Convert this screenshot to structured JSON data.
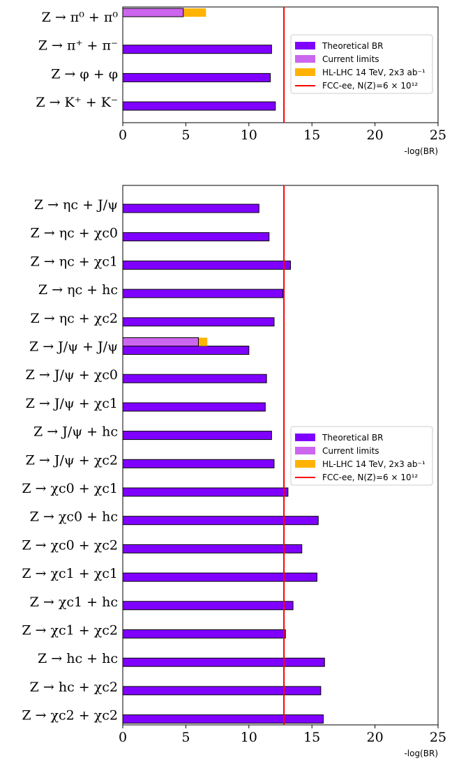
{
  "chart_data": [
    {
      "type": "bar",
      "orientation": "horizontal",
      "xlabel": "-log(BR)",
      "xlim": [
        0,
        25
      ],
      "xticks": [
        "0",
        "5",
        "10",
        "15",
        "20",
        "25"
      ],
      "categories": [
        "Z → π⁰ + π⁰",
        "Z → π⁺ + π⁻",
        "Z → φ + φ",
        "Z → K⁺ + K⁻"
      ],
      "series": [
        {
          "name": "Theoretical BR",
          "color": "#7F00FF",
          "values": [
            null,
            11.8,
            11.7,
            12.1
          ]
        },
        {
          "name": "Current limits",
          "color": "#CC66EE",
          "values": [
            4.8,
            null,
            null,
            null
          ]
        },
        {
          "name": "HL-LHC 14 TeV, 2x3 ab⁻¹",
          "color": "#FFB300",
          "values": [
            6.6,
            null,
            null,
            null
          ]
        }
      ],
      "reference_line": {
        "name": "FCC-ee, N(Z)=6 × 10¹²",
        "color": "#FF0000",
        "x": 12.78
      },
      "legend": {
        "location": "center-right"
      }
    },
    {
      "type": "bar",
      "orientation": "horizontal",
      "xlabel": "-log(BR)",
      "xlim": [
        0,
        25
      ],
      "xticks": [
        "0",
        "5",
        "10",
        "15",
        "20",
        "25"
      ],
      "categories": [
        "Z → ηc + J/ψ",
        "Z → ηc + χc0",
        "Z → ηc + χc1",
        "Z → ηc + hc",
        "Z → ηc + χc2",
        "Z → J/ψ + J/ψ",
        "Z → J/ψ + χc0",
        "Z → J/ψ + χc1",
        "Z → J/ψ + hc",
        "Z → J/ψ + χc2",
        "Z → χc0 + χc1",
        "Z → χc0 + hc",
        "Z → χc0 + χc2",
        "Z → χc1 + χc1",
        "Z → χc1 + hc",
        "Z → χc1 + χc2",
        "Z → hc + hc",
        "Z → hc + χc2",
        "Z → χc2 + χc2"
      ],
      "series": [
        {
          "name": "Theoretical BR",
          "color": "#7F00FF",
          "values": [
            10.8,
            11.6,
            13.3,
            12.7,
            12.0,
            10.0,
            11.4,
            11.3,
            11.8,
            12.0,
            13.1,
            15.5,
            14.2,
            15.4,
            13.5,
            12.9,
            16.0,
            15.7,
            15.9
          ]
        },
        {
          "name": "Current limits",
          "color": "#CC66EE",
          "values": [
            null,
            null,
            null,
            null,
            null,
            6.0,
            null,
            null,
            null,
            null,
            null,
            null,
            null,
            null,
            null,
            null,
            null,
            null,
            null
          ]
        },
        {
          "name": "HL-LHC 14 TeV, 2x3 ab⁻¹",
          "color": "#FFB300",
          "values": [
            null,
            null,
            null,
            null,
            null,
            6.7,
            null,
            null,
            null,
            null,
            null,
            null,
            null,
            null,
            null,
            null,
            null,
            null,
            null
          ]
        }
      ],
      "reference_line": {
        "name": "FCC-ee, N(Z)=6 × 10¹²",
        "color": "#FF0000",
        "x": 12.78
      },
      "legend": {
        "location": "center-right"
      }
    }
  ]
}
